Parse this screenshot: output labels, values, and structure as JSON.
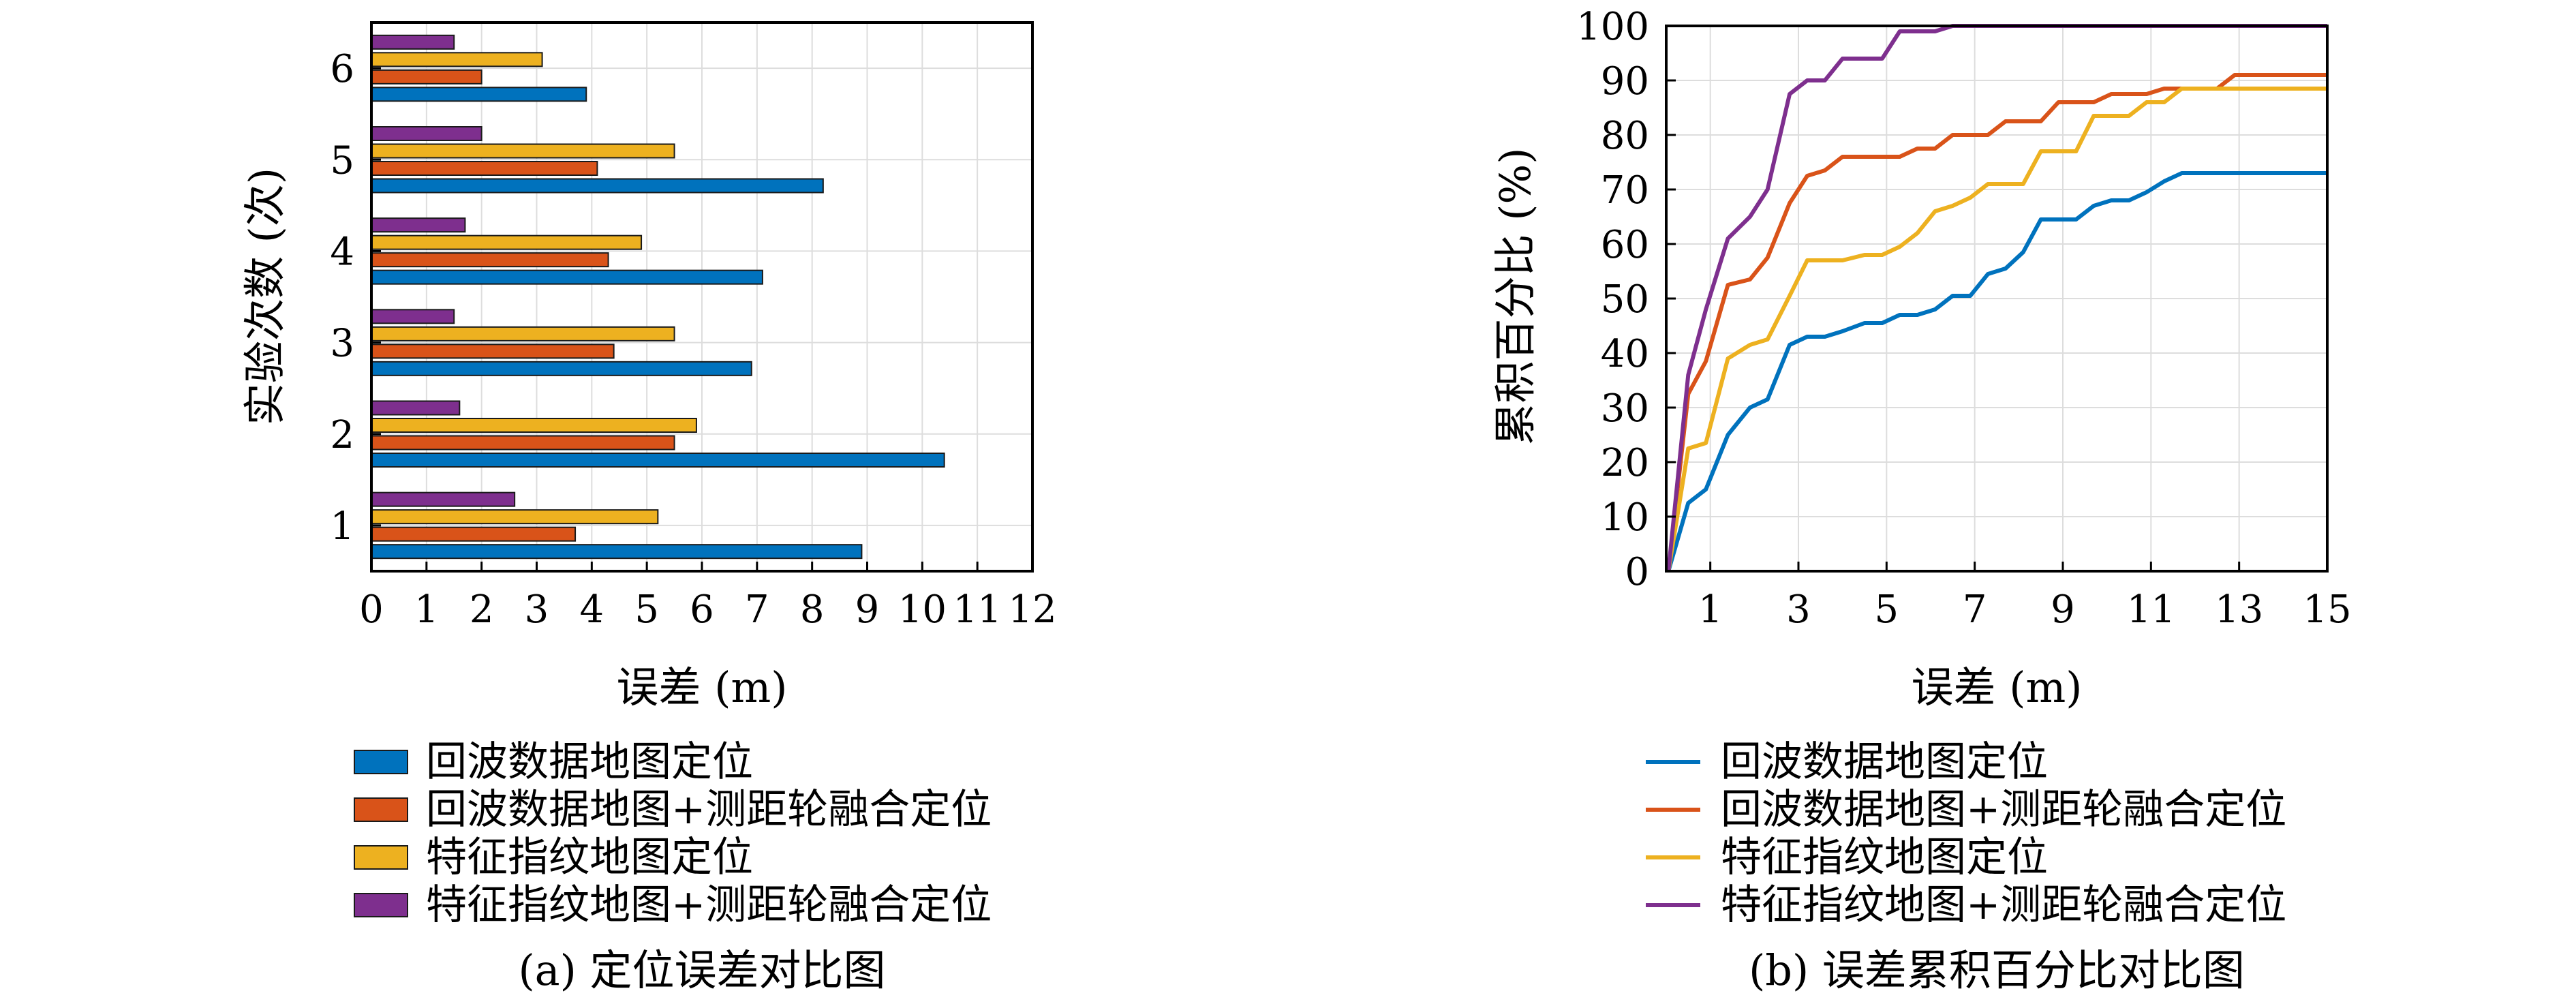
{
  "chart_data": [
    {
      "id": "a",
      "type": "bar",
      "orientation": "horizontal",
      "categories": [
        "1",
        "2",
        "3",
        "4",
        "5",
        "6"
      ],
      "series": [
        {
          "name": "回波数据地图定位",
          "color": "#0072BD",
          "values": [
            8.9,
            10.4,
            6.9,
            7.1,
            8.2,
            3.9
          ]
        },
        {
          "name": "回波数据地图+测距轮融合定位",
          "color": "#D95319",
          "values": [
            3.7,
            5.5,
            4.4,
            4.3,
            4.1,
            2.0
          ]
        },
        {
          "name": "特征指纹地图定位",
          "color": "#EDB120",
          "values": [
            5.2,
            5.9,
            5.5,
            4.9,
            5.5,
            3.1
          ]
        },
        {
          "name": "特征指纹地图+测距轮融合定位",
          "color": "#7E2F8E",
          "values": [
            2.6,
            1.6,
            1.5,
            1.7,
            2.0,
            1.5
          ]
        }
      ],
      "xlabel": "误差 (m)",
      "ylabel": "实验次数 (次)",
      "xlim": [
        0,
        12
      ],
      "xticks": [
        "0",
        "1",
        "2",
        "3",
        "4",
        "5",
        "6",
        "7",
        "8",
        "9",
        "10",
        "11",
        "12"
      ],
      "grid": true,
      "legend_position": "below",
      "caption": "(a) 定位误差对比图"
    },
    {
      "id": "b",
      "type": "line",
      "series": [
        {
          "name": "回波数据地图定位",
          "color": "#0072BD",
          "x": [
            0.05,
            0.5,
            0.9,
            1.4,
            1.9,
            2.3,
            2.8,
            3.2,
            3.6,
            4.0,
            4.5,
            4.9,
            5.3,
            5.7,
            6.1,
            6.5,
            6.9,
            7.3,
            7.7,
            8.1,
            8.5,
            8.9,
            9.3,
            9.7,
            10.1,
            10.5,
            10.9,
            11.3,
            11.7,
            12.1,
            12.5,
            12.9,
            13.3,
            13.7,
            14.1,
            14.5,
            15.0
          ],
          "y": [
            0,
            12.5,
            15,
            25,
            30,
            31.5,
            41.5,
            43,
            43,
            44,
            45.5,
            45.5,
            47,
            47,
            48,
            50.5,
            50.5,
            54.5,
            55.5,
            58.5,
            64.5,
            64.5,
            64.5,
            67,
            68,
            68,
            69.5,
            71.5,
            73,
            73,
            73,
            73,
            73,
            73,
            73,
            73,
            73
          ]
        },
        {
          "name": "回波数据地图+测距轮融合定位",
          "color": "#D95319",
          "x": [
            0.05,
            0.5,
            0.9,
            1.4,
            1.9,
            2.3,
            2.8,
            3.2,
            3.6,
            4.0,
            4.5,
            4.9,
            5.3,
            5.7,
            6.1,
            6.5,
            6.9,
            7.3,
            7.7,
            8.1,
            8.5,
            8.9,
            9.3,
            9.7,
            10.1,
            10.5,
            10.9,
            11.3,
            11.7,
            12.1,
            12.5,
            12.9,
            13.3,
            13.7,
            14.1,
            14.5,
            15.0
          ],
          "y": [
            0,
            32.5,
            38.5,
            52.5,
            53.5,
            57.5,
            67.5,
            72.5,
            73.5,
            76,
            76,
            76,
            76,
            77.5,
            77.5,
            80,
            80,
            80,
            82.5,
            82.5,
            82.5,
            86,
            86,
            86,
            87.5,
            87.5,
            87.5,
            88.5,
            88.5,
            88.5,
            88.5,
            91,
            91,
            91,
            91,
            91,
            91
          ]
        },
        {
          "name": "特征指纹地图定位",
          "color": "#EDB120",
          "x": [
            0.05,
            0.5,
            0.9,
            1.4,
            1.9,
            2.3,
            2.8,
            3.2,
            3.6,
            4.0,
            4.5,
            4.9,
            5.3,
            5.7,
            6.1,
            6.5,
            6.9,
            7.3,
            7.7,
            8.1,
            8.5,
            8.9,
            9.3,
            9.7,
            10.1,
            10.5,
            10.9,
            11.3,
            11.7,
            12.1,
            12.5,
            12.9,
            13.3,
            13.7,
            14.1,
            14.5,
            15.0
          ],
          "y": [
            0,
            22.5,
            23.5,
            39,
            41.5,
            42.5,
            50.5,
            57,
            57,
            57,
            58,
            58,
            59.5,
            62,
            66,
            67,
            68.5,
            71,
            71,
            71,
            77,
            77,
            77,
            83.5,
            83.5,
            83.5,
            86,
            86,
            88.5,
            88.5,
            88.5,
            88.5,
            88.5,
            88.5,
            88.5,
            88.5,
            88.5
          ]
        },
        {
          "name": "特征指纹地图+测距轮融合定位",
          "color": "#7E2F8E",
          "x": [
            0.05,
            0.5,
            0.9,
            1.4,
            1.9,
            2.3,
            2.8,
            3.2,
            3.6,
            4.0,
            4.5,
            4.9,
            5.3,
            5.7,
            6.1,
            6.5,
            6.9,
            7.3,
            7.7,
            8.1,
            8.5,
            8.9,
            9.3,
            9.7,
            10.1,
            10.5,
            10.9,
            11.3,
            11.7,
            12.1,
            12.5,
            12.9,
            13.3,
            13.7,
            14.1,
            14.5,
            15.0
          ],
          "y": [
            0,
            36,
            48,
            61,
            65,
            70,
            87.5,
            90,
            90,
            94,
            94,
            94,
            99,
            99,
            99,
            100,
            100,
            100,
            100,
            100,
            100,
            100,
            100,
            100,
            100,
            100,
            100,
            100,
            100,
            100,
            100,
            100,
            100,
            100,
            100,
            100,
            100
          ]
        }
      ],
      "xlabel": "误差 (m)",
      "ylabel": "累积百分比 (%)",
      "xlim": [
        0,
        15
      ],
      "ylim": [
        0,
        100
      ],
      "xticks": [
        "1",
        "3",
        "5",
        "7",
        "9",
        "11",
        "13",
        "15"
      ],
      "yticks": [
        "0",
        "10",
        "20",
        "30",
        "40",
        "50",
        "60",
        "70",
        "80",
        "90",
        "100"
      ],
      "grid": true,
      "legend_position": "below",
      "caption": "(b) 误差累积百分比对比图"
    }
  ]
}
